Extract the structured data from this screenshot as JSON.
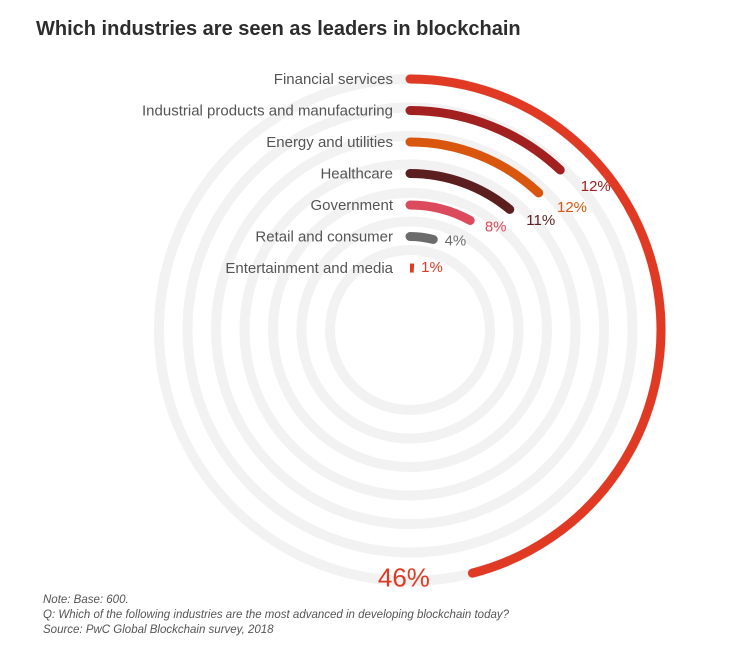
{
  "title": "Which industries are seen as leaders in blockchain",
  "notes": [
    "Note: Base: 600.",
    "Q: Which of the following industries are the most advanced in developing blockchain today?",
    "Source: PwC Global Blockchain survey, 2018"
  ],
  "chart_data": {
    "type": "radial-bar",
    "title": "Which industries are seen as leaders in blockchain",
    "categories": [
      "Financial services",
      "Industrial products and manufacturing",
      "Energy and utilities",
      "Healthcare",
      "Government",
      "Retail and consumer",
      "Entertainment and media"
    ],
    "values": [
      46,
      12,
      12,
      11,
      8,
      4,
      1
    ],
    "value_labels": [
      "46%",
      "12%",
      "12%",
      "11%",
      "8%",
      "4%",
      "1%"
    ],
    "unit": "%",
    "colors": [
      "#e03a24",
      "#a32020",
      "#d9560f",
      "#5c1f1f",
      "#db4a5d",
      "#6b6b6b",
      "#e03a24"
    ],
    "highlight_label_color": "#e03a24",
    "track_color": "#f2f2f2"
  }
}
